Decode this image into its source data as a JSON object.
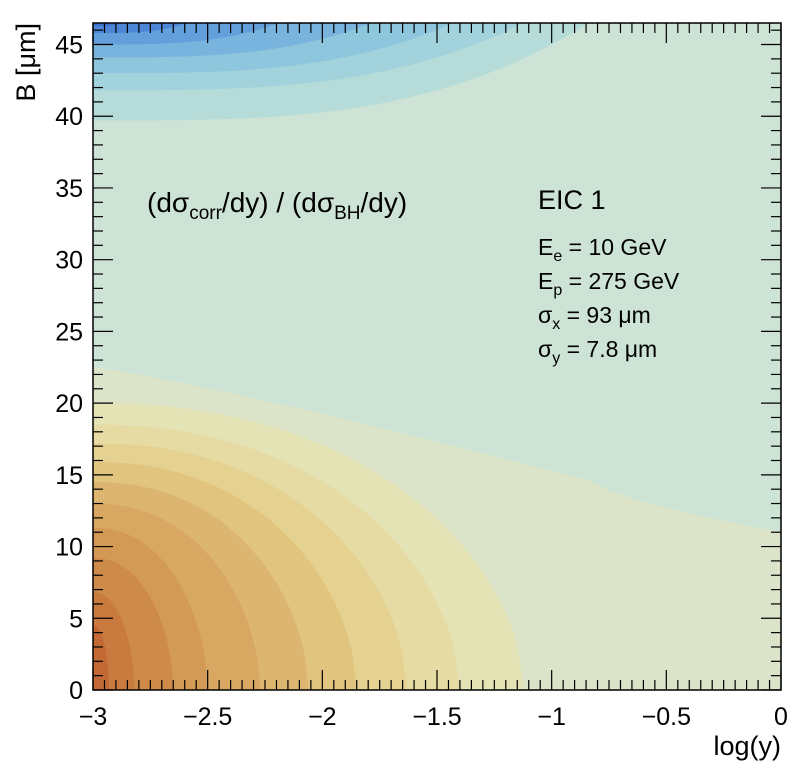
{
  "chart_data": {
    "type": "heatmap",
    "xlabel": "log(y)",
    "ylabel": "B [μm]",
    "xlim": [
      -3,
      0
    ],
    "ylim": [
      0,
      46.5
    ],
    "xticks": [
      -3,
      -2.5,
      -2,
      -1.5,
      -1,
      -0.5,
      0
    ],
    "xtick_labels": [
      "−3",
      "−2.5",
      "−2",
      "−1.5",
      "−1",
      "−0.5",
      "0"
    ],
    "yticks": [
      0,
      5,
      10,
      15,
      20,
      25,
      30,
      35,
      40,
      45
    ],
    "ytick_labels": [
      "0",
      "5",
      "10",
      "15",
      "20",
      "25",
      "30",
      "35",
      "40",
      "45"
    ],
    "grid": false,
    "background_level_color": "#cde3d5",
    "warm_levels": [
      {
        "b_at_left": 22.5,
        "x_at_bottom": -0.8,
        "b_at_right": 11.0,
        "color": "#dbe4c8"
      },
      {
        "b_at_left": 20.0,
        "x_at_bottom": -1.12,
        "b_at_right": 0,
        "color": "#e4e3b6"
      },
      {
        "b_at_left": 18.5,
        "x_at_bottom": -1.4,
        "b_at_right": 0,
        "color": "#e6dba2"
      },
      {
        "b_at_left": 17.2,
        "x_at_bottom": -1.63,
        "b_at_right": 0,
        "color": "#e5d190"
      },
      {
        "b_at_left": 15.9,
        "x_at_bottom": -1.85,
        "b_at_right": 0,
        "color": "#e1c57f"
      },
      {
        "b_at_left": 14.5,
        "x_at_bottom": -2.06,
        "b_at_right": 0,
        "color": "#dcb670"
      },
      {
        "b_at_left": 13.0,
        "x_at_bottom": -2.27,
        "b_at_right": 0,
        "color": "#d8a862"
      },
      {
        "b_at_left": 11.3,
        "x_at_bottom": -2.5,
        "b_at_right": 0,
        "color": "#d39a55"
      },
      {
        "b_at_left": 9.2,
        "x_at_bottom": -2.65,
        "b_at_right": 0,
        "color": "#ce8a49"
      },
      {
        "b_at_left": 6.8,
        "x_at_bottom": -2.82,
        "b_at_right": 0,
        "color": "#c97a3f"
      },
      {
        "b_at_left": 4.5,
        "x_at_bottom": -2.93,
        "b_at_right": 0,
        "color": "#c26935"
      }
    ],
    "cool_levels": [
      {
        "b_at_left": 39.7,
        "x_at_top": -0.78,
        "color": "#b5dcd9"
      },
      {
        "b_at_left": 41.8,
        "x_at_top": -1.05,
        "color": "#a2d3dc"
      },
      {
        "b_at_left": 43.0,
        "x_at_top": -1.35,
        "color": "#8ec6dd"
      },
      {
        "b_at_left": 44.1,
        "x_at_top": -1.7,
        "color": "#79b4de"
      },
      {
        "b_at_left": 45.0,
        "x_at_top": -2.1,
        "color": "#639fdb"
      },
      {
        "b_at_left": 45.8,
        "x_at_top": -2.5,
        "color": "#4c86d6"
      },
      {
        "b_at_left": 46.3,
        "x_at_top": -2.8,
        "color": "#3a6fce"
      }
    ],
    "annotations": {
      "title": {
        "main": "(dσ",
        "sub1": "corr",
        "mid": "/dy) / (dσ",
        "sub2": "BH",
        "end": "/dy)"
      },
      "experiment": "EIC 1",
      "params": [
        {
          "sym": "E",
          "sub": "e",
          "rest": " = 10 GeV"
        },
        {
          "sym": "E",
          "sub": "p",
          "rest": " = 275 GeV"
        },
        {
          "sym": "σ",
          "sub": "x",
          "rest": " = 93 μm"
        },
        {
          "sym": "σ",
          "sub": "y",
          "rest": " = 7.8 μm"
        }
      ]
    }
  }
}
